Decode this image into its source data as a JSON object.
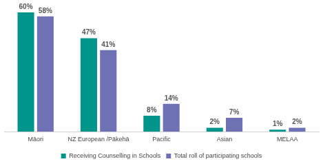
{
  "chart_data": {
    "type": "bar",
    "categories": [
      "Māori",
      "NZ European /Pākehā",
      "Pacific",
      "Asian",
      "MELAA"
    ],
    "series": [
      {
        "name": "Receiving Counselling in Schools",
        "color": "#00958a",
        "values": [
          60,
          47,
          8,
          2,
          1
        ],
        "value_labels": [
          "60%",
          "47%",
          "8%",
          "2%",
          "1%"
        ]
      },
      {
        "name": "Total roll of participating schools",
        "color": "#6e72b5",
        "values": [
          58,
          41,
          14,
          7,
          2
        ],
        "value_labels": [
          "58%",
          "41%",
          "14%",
          "7%",
          "2%"
        ]
      }
    ],
    "ylim": [
      0,
      60
    ],
    "grid": false,
    "legend": "bottom",
    "data_labels": true,
    "tick_labels": "x"
  }
}
